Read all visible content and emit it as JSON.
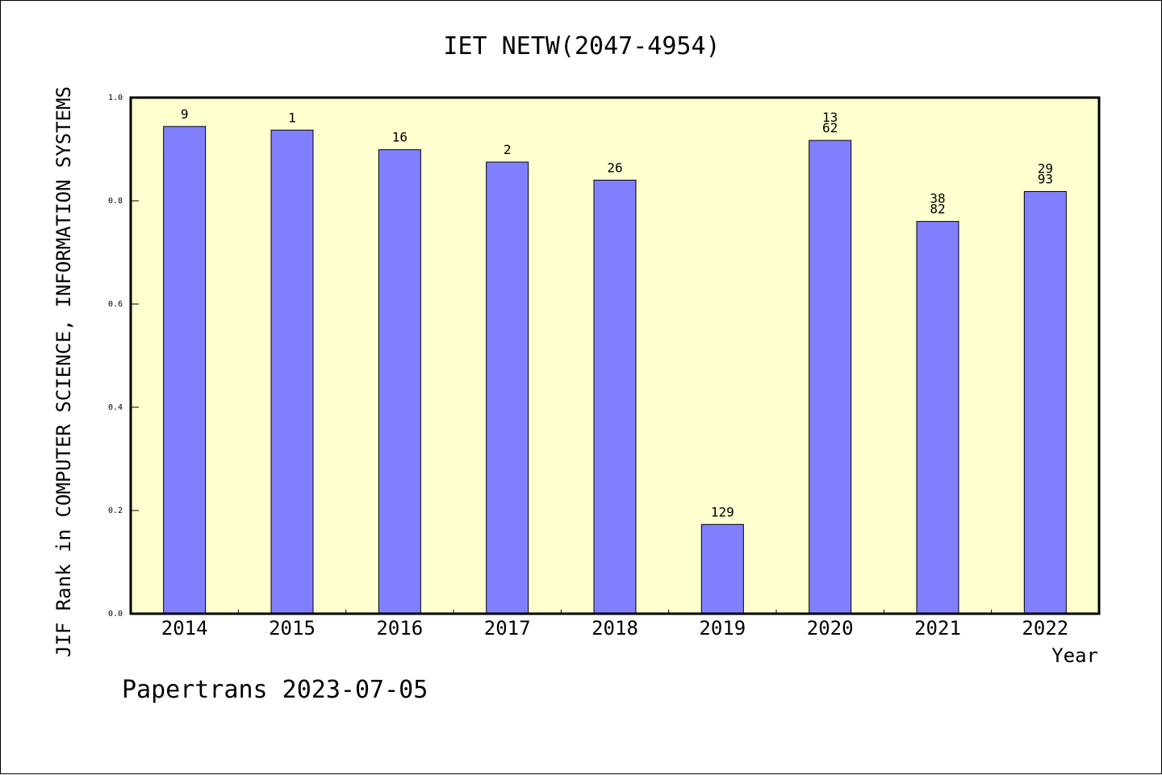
{
  "chart_data": {
    "type": "bar",
    "title": "IET NETW(2047-4954)",
    "xlabel": "Year",
    "ylabel": "JIF Rank in COMPUTER SCIENCE, INFORMATION SYSTEMS",
    "categories": [
      "2014",
      "2015",
      "2016",
      "2017",
      "2018",
      "2019",
      "2020",
      "2021",
      "2022"
    ],
    "values": [
      0.944,
      0.937,
      0.899,
      0.875,
      0.84,
      0.173,
      0.917,
      0.76,
      0.818
    ],
    "bar_labels": [
      [
        "9"
      ],
      [
        "1"
      ],
      [
        "16"
      ],
      [
        "2"
      ],
      [
        "26"
      ],
      [
        "129"
      ],
      [
        "13",
        "62"
      ],
      [
        "38",
        "82"
      ],
      [
        "29",
        "93"
      ]
    ],
    "yticks": [
      "0.0",
      "0.2",
      "0.4",
      "0.6",
      "0.8",
      "1.0"
    ],
    "ylim": [
      0,
      1.0
    ],
    "grid": false,
    "legend": false,
    "colors": {
      "bar": "#8080ff",
      "plot_background": "#ffffd0",
      "axis": "#000000"
    },
    "footer": "Papertrans 2023-07-05"
  }
}
